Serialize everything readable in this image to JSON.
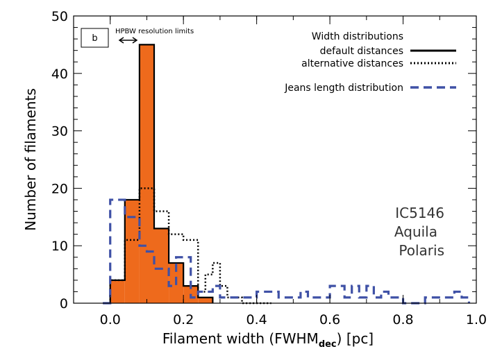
{
  "chart_data": {
    "type": "bar",
    "panel_label": "b",
    "xlabel_main": "Filament width (FWHM",
    "xlabel_sub": "dec",
    "xlabel_tail": ") [pc]",
    "ylabel": "Number of filaments",
    "xlim": [
      -0.1,
      1.0
    ],
    "ylim": [
      0,
      50
    ],
    "x_ticks": [
      0.0,
      0.2,
      0.4,
      0.6,
      0.8,
      1.0
    ],
    "x_tick_labels": [
      "0.0",
      "0.2",
      "0.4",
      "0.6",
      "0.8",
      "1.0"
    ],
    "y_ticks": [
      0,
      10,
      20,
      30,
      40,
      50
    ],
    "y_tick_labels": [
      "0",
      "10",
      "20",
      "30",
      "40",
      "50"
    ],
    "legend": {
      "title": "Width distributions",
      "default": "default distances",
      "alternative": "alternative distances",
      "jeans": "Jeans length distribution"
    },
    "regions": [
      "IC5146",
      "Aquila",
      "Polaris"
    ],
    "annotation": {
      "text": "HPBW resolution limits",
      "x_range": [
        0.06,
        0.18
      ]
    },
    "series": [
      {
        "name": "default distances",
        "style": "filled-histogram",
        "color": "#EE6A1C",
        "bin_width": 0.04,
        "bin_edges": [
          0.0,
          0.04,
          0.08,
          0.12,
          0.16,
          0.2,
          0.24,
          0.28
        ],
        "values": [
          4,
          18,
          45,
          13,
          7,
          3,
          1
        ]
      },
      {
        "name": "alternative distances",
        "style": "dotted",
        "color": "#000000",
        "bin_edges": [
          -0.02,
          0.0,
          0.02,
          0.04,
          0.06,
          0.08,
          0.1,
          0.12,
          0.14,
          0.16,
          0.18,
          0.2,
          0.22,
          0.24,
          0.26,
          0.28,
          0.3,
          0.32,
          0.34,
          0.36,
          0.38,
          0.4,
          0.42,
          0.44
        ],
        "values": [
          0,
          4,
          4,
          11,
          11,
          20,
          20,
          16,
          16,
          12,
          12,
          11,
          11,
          2,
          5,
          7,
          3,
          1,
          1,
          0,
          0,
          0,
          0
        ]
      },
      {
        "name": "Jeans length distribution",
        "style": "dashed",
        "color": "#3F51A6",
        "bin_edges": [
          -0.02,
          0.0,
          0.02,
          0.04,
          0.06,
          0.08,
          0.1,
          0.12,
          0.14,
          0.16,
          0.18,
          0.2,
          0.22,
          0.24,
          0.26,
          0.28,
          0.3,
          0.32,
          0.34,
          0.36,
          0.38,
          0.4,
          0.42,
          0.44,
          0.46,
          0.48,
          0.5,
          0.52,
          0.54,
          0.56,
          0.58,
          0.6,
          0.62,
          0.64,
          0.66,
          0.68,
          0.7,
          0.72,
          0.74,
          0.76,
          0.78,
          0.8,
          0.82,
          0.84,
          0.86,
          0.88,
          0.9,
          0.92,
          0.94,
          0.96,
          0.98
        ],
        "values": [
          0,
          18,
          18,
          15,
          15,
          10,
          9,
          6,
          6,
          3,
          8,
          8,
          1,
          2,
          2,
          3,
          1,
          1,
          1,
          1,
          1,
          2,
          2,
          2,
          1,
          1,
          1,
          2,
          1,
          1,
          1,
          3,
          3,
          1,
          3,
          1,
          3,
          1,
          2,
          1,
          1,
          0,
          0,
          0,
          1,
          1,
          1,
          1,
          2,
          1
        ]
      }
    ]
  }
}
